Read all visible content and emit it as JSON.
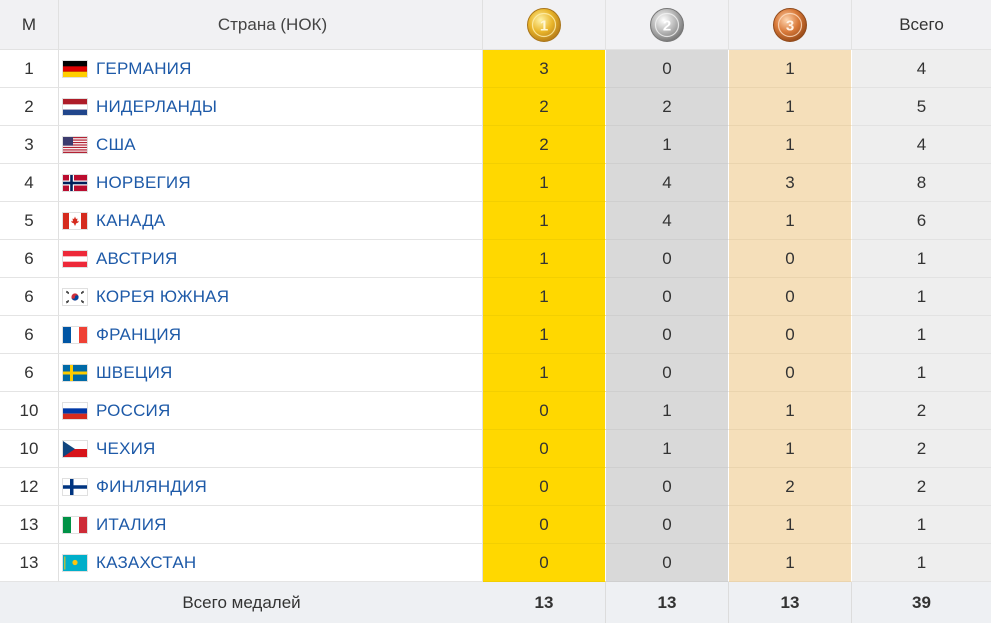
{
  "header": {
    "rank": "М",
    "country": "Страна (НОК)",
    "gold_icon": "gold-medal-1",
    "silver_icon": "silver-medal-2",
    "bronze_icon": "bronze-medal-3",
    "total": "Всего"
  },
  "rows": [
    {
      "rank": "1",
      "country": "ГЕРМАНИЯ",
      "flag": "germany",
      "gold": "3",
      "silver": "0",
      "bronze": "1",
      "total": "4"
    },
    {
      "rank": "2",
      "country": "НИДЕРЛАНДЫ",
      "flag": "netherlands",
      "gold": "2",
      "silver": "2",
      "bronze": "1",
      "total": "5"
    },
    {
      "rank": "3",
      "country": "США",
      "flag": "usa",
      "gold": "2",
      "silver": "1",
      "bronze": "1",
      "total": "4"
    },
    {
      "rank": "4",
      "country": "НОРВЕГИЯ",
      "flag": "norway",
      "gold": "1",
      "silver": "4",
      "bronze": "3",
      "total": "8"
    },
    {
      "rank": "5",
      "country": "КАНАДА",
      "flag": "canada",
      "gold": "1",
      "silver": "4",
      "bronze": "1",
      "total": "6"
    },
    {
      "rank": "6",
      "country": "АВСТРИЯ",
      "flag": "austria",
      "gold": "1",
      "silver": "0",
      "bronze": "0",
      "total": "1"
    },
    {
      "rank": "6",
      "country": "КОРЕЯ ЮЖНАЯ",
      "flag": "south-korea",
      "gold": "1",
      "silver": "0",
      "bronze": "0",
      "total": "1"
    },
    {
      "rank": "6",
      "country": "ФРАНЦИЯ",
      "flag": "france",
      "gold": "1",
      "silver": "0",
      "bronze": "0",
      "total": "1"
    },
    {
      "rank": "6",
      "country": "ШВЕЦИЯ",
      "flag": "sweden",
      "gold": "1",
      "silver": "0",
      "bronze": "0",
      "total": "1"
    },
    {
      "rank": "10",
      "country": "РОССИЯ",
      "flag": "russia",
      "gold": "0",
      "silver": "1",
      "bronze": "1",
      "total": "2"
    },
    {
      "rank": "10",
      "country": "ЧЕХИЯ",
      "flag": "czechia",
      "gold": "0",
      "silver": "1",
      "bronze": "1",
      "total": "2"
    },
    {
      "rank": "12",
      "country": "ФИНЛЯНДИЯ",
      "flag": "finland",
      "gold": "0",
      "silver": "0",
      "bronze": "2",
      "total": "2"
    },
    {
      "rank": "13",
      "country": "ИТАЛИЯ",
      "flag": "italy",
      "gold": "0",
      "silver": "0",
      "bronze": "1",
      "total": "1"
    },
    {
      "rank": "13",
      "country": "КАЗАХСТАН",
      "flag": "kazakhstan",
      "gold": "0",
      "silver": "0",
      "bronze": "1",
      "total": "1"
    }
  ],
  "footer": {
    "label": "Всего медалей",
    "gold": "13",
    "silver": "13",
    "bronze": "13",
    "total": "39"
  },
  "colors": {
    "gold_cell": "#ffd800",
    "silver_cell": "#d9d9d9",
    "bronze_cell": "#f5dfba",
    "total_cell": "#eeeeee",
    "link": "#1e5aa8"
  }
}
